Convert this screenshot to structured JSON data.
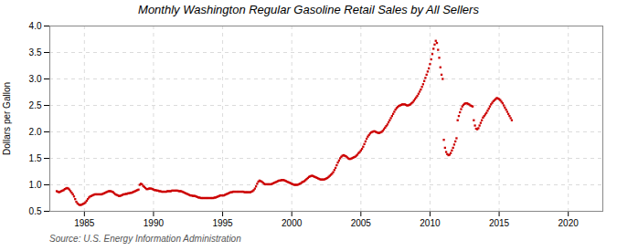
{
  "chart_data": {
    "type": "scatter",
    "title": "Monthly Washington Regular Gasoline Retail Sales by All Sellers",
    "ylabel": "Dollars per Gallon",
    "caption": "Source: U.S. Energy Information Administration",
    "color": "#CC0000",
    "marker": "square",
    "grid": true,
    "xlim": [
      1982.5,
      2022.5
    ],
    "ylim": [
      0.5,
      4.0
    ],
    "xticks": [
      1985,
      1990,
      1995,
      2000,
      2005,
      2010,
      2015,
      2020
    ],
    "yticks": [
      0.5,
      {
        "value": 1.0,
        "label": "1.0"
      },
      1.5,
      {
        "value": 2.0,
        "label": "2.0"
      },
      2.5,
      {
        "value": 3.0,
        "label": "3.0"
      },
      3.5,
      {
        "value": 4.0,
        "label": "4.0"
      }
    ],
    "x": [
      1983,
      1983.0833333333,
      1983.1666666667,
      1983.25,
      1983.3333333333,
      1983.4166666667,
      1983.5,
      1983.5833333333,
      1983.6666666667,
      1983.75,
      1983.8333333333,
      1983.9166666667,
      1984,
      1984.0833333333,
      1984.1666666667,
      1984.25,
      1984.3333333333,
      1984.4166666667,
      1984.5,
      1984.5833333333,
      1984.6666666667,
      1984.75,
      1984.8333333333,
      1984.9166666667,
      1985,
      1985.0833333333,
      1985.1666666667,
      1985.25,
      1985.3333333333,
      1985.4166666667,
      1985.5,
      1985.5833333333,
      1985.6666666667,
      1985.75,
      1985.8333333333,
      1985.9166666667,
      1986,
      1986.0833333333,
      1986.1666666667,
      1986.25,
      1986.3333333333,
      1986.4166666667,
      1986.5,
      1986.5833333333,
      1986.6666666667,
      1986.75,
      1986.8333333333,
      1986.9166666667,
      1987,
      1987.0833333333,
      1987.1666666667,
      1987.25,
      1987.3333333333,
      1987.4166666667,
      1987.5,
      1987.5833333333,
      1987.6666666667,
      1987.75,
      1987.8333333333,
      1987.9166666667,
      1988,
      1988.0833333333,
      1988.1666666667,
      1988.25,
      1988.3333333333,
      1988.4166666667,
      1988.5,
      1988.5833333333,
      1988.6666666667,
      1988.75,
      1988.8333333333,
      1988.9166666667,
      1989,
      1989.0833333333,
      1989.1666666667,
      1989.25,
      1989.3333333333,
      1989.4166666667,
      1989.5,
      1989.5833333333,
      1989.6666666667,
      1989.75,
      1989.8333333333,
      1989.9166666667,
      1990,
      1990.0833333333,
      1990.1666666667,
      1990.25,
      1990.3333333333,
      1990.4166666667,
      1990.5,
      1990.5833333333,
      1990.6666666667,
      1990.75,
      1990.8333333333,
      1990.9166666667,
      1991,
      1991.0833333333,
      1991.1666666667,
      1991.25,
      1991.3333333333,
      1991.4166666667,
      1991.5,
      1991.5833333333,
      1991.6666666667,
      1991.75,
      1991.8333333333,
      1991.9166666667,
      1992,
      1992.0833333333,
      1992.1666666667,
      1992.25,
      1992.3333333333,
      1992.4166666667,
      1992.5,
      1992.5833333333,
      1992.6666666667,
      1992.75,
      1992.8333333333,
      1992.9166666667,
      1993,
      1993.0833333333,
      1993.1666666667,
      1993.25,
      1993.3333333333,
      1993.4166666667,
      1993.5,
      1993.5833333333,
      1993.6666666667,
      1993.75,
      1993.8333333333,
      1993.9166666667,
      1994,
      1994.0833333333,
      1994.1666666667,
      1994.25,
      1994.3333333333,
      1994.4166666667,
      1994.5,
      1994.5833333333,
      1994.6666666667,
      1994.75,
      1994.8333333333,
      1994.9166666667,
      1995,
      1995.0833333333,
      1995.1666666667,
      1995.25,
      1995.3333333333,
      1995.4166666667,
      1995.5,
      1995.5833333333,
      1995.6666666667,
      1995.75,
      1995.8333333333,
      1995.9166666667,
      1996,
      1996.0833333333,
      1996.1666666667,
      1996.25,
      1996.3333333333,
      1996.4166666667,
      1996.5,
      1996.5833333333,
      1996.6666666667,
      1996.75,
      1996.8333333333,
      1996.9166666667,
      1997,
      1997.0833333333,
      1997.1666666667,
      1997.25,
      1997.3333333333,
      1997.4166666667,
      1997.5,
      1997.5833333333,
      1997.6666666667,
      1997.75,
      1997.8333333333,
      1997.9166666667,
      1998,
      1998.0833333333,
      1998.1666666667,
      1998.25,
      1998.3333333333,
      1998.4166666667,
      1998.5,
      1998.5833333333,
      1998.6666666667,
      1998.75,
      1998.8333333333,
      1998.9166666667,
      1999,
      1999.0833333333,
      1999.1666666667,
      1999.25,
      1999.3333333333,
      1999.4166666667,
      1999.5,
      1999.5833333333,
      1999.6666666667,
      1999.75,
      1999.8333333333,
      1999.9166666667,
      2000,
      2000.0833333333,
      2000.1666666667,
      2000.25,
      2000.3333333333,
      2000.4166666667,
      2000.5,
      2000.5833333333,
      2000.6666666667,
      2000.75,
      2000.8333333333,
      2000.9166666667,
      2001,
      2001.0833333333,
      2001.1666666667,
      2001.25,
      2001.3333333333,
      2001.4166666667,
      2001.5,
      2001.5833333333,
      2001.6666666667,
      2001.75,
      2001.8333333333,
      2001.9166666667,
      2002,
      2002.0833333333,
      2002.1666666667,
      2002.25,
      2002.3333333333,
      2002.4166666667,
      2002.5,
      2002.5833333333,
      2002.6666666667,
      2002.75,
      2002.8333333333,
      2002.9166666667,
      2003,
      2003.0833333333,
      2003.1666666667,
      2003.25,
      2003.3333333333,
      2003.4166666667,
      2003.5,
      2003.5833333333,
      2003.6666666667,
      2003.75,
      2003.8333333333,
      2003.9166666667,
      2004,
      2004.0833333333,
      2004.1666666667,
      2004.25,
      2004.3333333333,
      2004.4166666667,
      2004.5,
      2004.5833333333,
      2004.6666666667,
      2004.75,
      2004.8333333333,
      2004.9166666667,
      2005,
      2005.0833333333,
      2005.1666666667,
      2005.25,
      2005.3333333333,
      2005.4166666667,
      2005.5,
      2005.5833333333,
      2005.6666666667,
      2005.75,
      2005.8333333333,
      2005.9166666667,
      2006,
      2006.0833333333,
      2006.1666666667,
      2006.25,
      2006.3333333333,
      2006.4166666667,
      2006.5,
      2006.5833333333,
      2006.6666666667,
      2006.75,
      2006.8333333333,
      2006.9166666667,
      2007,
      2007.0833333333,
      2007.1666666667,
      2007.25,
      2007.3333333333,
      2007.4166666667,
      2007.5,
      2007.5833333333,
      2007.6666666667,
      2007.75,
      2007.8333333333,
      2007.9166666667,
      2008,
      2008.0833333333,
      2008.1666666667,
      2008.25,
      2008.3333333333,
      2008.4166666667,
      2008.5,
      2008.5833333333,
      2008.6666666667,
      2008.75,
      2008.8333333333,
      2008.9166666667,
      2009,
      2009.0833333333,
      2009.1666666667,
      2009.25,
      2009.3333333333,
      2009.4166666667,
      2009.5,
      2009.5833333333,
      2009.6666666667,
      2009.75,
      2009.8333333333,
      2009.9166666667,
      2010,
      2010.0833333333,
      2010.1666666667,
      2010.25,
      2010.3333333333,
      2010.4166666667,
      2010.5,
      2010.5833333333,
      2010.6666666667,
      2010.75,
      2010.8333333333,
      2010.9166666667,
      2011,
      2011.0833333333,
      2011.1666666667,
      2011.25,
      2011.3333333333,
      2011.4166666667,
      2011.5,
      2011.5833333333,
      2011.6666666667,
      2011.75,
      2011.8333333333,
      2011.9166666667,
      2012,
      2012.0833333333,
      2012.1666666667,
      2012.25,
      2012.3333333333,
      2012.4166666667,
      2012.5,
      2012.5833333333,
      2012.6666666667,
      2012.75,
      2012.8333333333,
      2012.9166666667,
      2013,
      2013.0833333333,
      2013.1666666667,
      2013.25,
      2013.3333333333,
      2013.4166666667,
      2013.5,
      2013.5833333333,
      2013.6666666667,
      2013.75,
      2013.8333333333,
      2013.9166666667,
      2014,
      2014.0833333333,
      2014.1666666667,
      2014.25,
      2014.3333333333,
      2014.4166666667,
      2014.5,
      2014.5833333333,
      2014.6666666667,
      2014.75,
      2014.8333333333,
      2014.9166666667,
      2015,
      2015.0833333333,
      2015.1666666667,
      2015.25,
      2015.3333333333,
      2015.4166666667,
      2015.5,
      2015.5833333333,
      2015.6666666667,
      2015.75,
      2015.8333333333,
      2015.9166666667
    ],
    "values": [
      0.88,
      0.87,
      0.86,
      0.87,
      0.88,
      0.89,
      0.9,
      0.92,
      0.93,
      0.94,
      0.93,
      0.91,
      0.88,
      0.85,
      0.82,
      0.78,
      0.73,
      0.68,
      0.65,
      0.63,
      0.62,
      0.62,
      0.63,
      0.64,
      0.65,
      0.67,
      0.7,
      0.73,
      0.76,
      0.78,
      0.79,
      0.8,
      0.81,
      0.82,
      0.82,
      0.82,
      0.82,
      0.82,
      0.82,
      0.82,
      0.83,
      0.84,
      0.85,
      0.86,
      0.87,
      0.88,
      0.88,
      0.88,
      0.87,
      0.86,
      0.84,
      0.82,
      0.81,
      0.8,
      0.79,
      0.79,
      0.8,
      0.81,
      0.82,
      0.82,
      0.83,
      0.83,
      0.84,
      0.84,
      0.85,
      0.85,
      0.86,
      0.87,
      0.88,
      0.89,
      0.9,
      0.91,
      1.0,
      1.02,
      1.01,
      0.98,
      0.96,
      0.94,
      0.92,
      0.92,
      0.93,
      0.93,
      0.93,
      0.92,
      0.91,
      0.9,
      0.9,
      0.89,
      0.89,
      0.88,
      0.88,
      0.87,
      0.87,
      0.87,
      0.87,
      0.87,
      0.88,
      0.88,
      0.88,
      0.88,
      0.89,
      0.89,
      0.89,
      0.89,
      0.89,
      0.89,
      0.88,
      0.88,
      0.88,
      0.87,
      0.86,
      0.85,
      0.84,
      0.83,
      0.82,
      0.81,
      0.8,
      0.8,
      0.79,
      0.79,
      0.79,
      0.78,
      0.77,
      0.76,
      0.76,
      0.75,
      0.75,
      0.75,
      0.75,
      0.75,
      0.75,
      0.75,
      0.75,
      0.75,
      0.75,
      0.75,
      0.75,
      0.76,
      0.76,
      0.77,
      0.78,
      0.79,
      0.8,
      0.8,
      0.8,
      0.8,
      0.81,
      0.82,
      0.83,
      0.84,
      0.85,
      0.86,
      0.86,
      0.87,
      0.87,
      0.87,
      0.87,
      0.87,
      0.87,
      0.87,
      0.87,
      0.87,
      0.87,
      0.86,
      0.86,
      0.86,
      0.86,
      0.86,
      0.86,
      0.87,
      0.88,
      0.9,
      0.93,
      0.97,
      1.02,
      1.06,
      1.08,
      1.07,
      1.06,
      1.04,
      1.02,
      1.01,
      1.01,
      1.01,
      1.01,
      1.01,
      1.01,
      1.02,
      1.03,
      1.04,
      1.05,
      1.06,
      1.07,
      1.08,
      1.08,
      1.09,
      1.09,
      1.09,
      1.08,
      1.07,
      1.06,
      1.05,
      1.04,
      1.03,
      1.02,
      1.01,
      1.0,
      1.0,
      1.0,
      1.0,
      1.01,
      1.02,
      1.03,
      1.05,
      1.06,
      1.07,
      1.09,
      1.11,
      1.13,
      1.15,
      1.16,
      1.17,
      1.17,
      1.16,
      1.15,
      1.14,
      1.13,
      1.12,
      1.11,
      1.1,
      1.1,
      1.1,
      1.1,
      1.11,
      1.12,
      1.13,
      1.15,
      1.17,
      1.19,
      1.21,
      1.24,
      1.28,
      1.32,
      1.37,
      1.42,
      1.46,
      1.5,
      1.53,
      1.55,
      1.56,
      1.55,
      1.54,
      1.52,
      1.5,
      1.49,
      1.49,
      1.5,
      1.51,
      1.52,
      1.53,
      1.55,
      1.57,
      1.6,
      1.62,
      1.65,
      1.68,
      1.72,
      1.77,
      1.82,
      1.87,
      1.91,
      1.94,
      1.97,
      1.99,
      2.0,
      2.01,
      2.01,
      2.0,
      1.99,
      1.98,
      1.98,
      1.99,
      2.0,
      2.02,
      2.05,
      2.08,
      2.11,
      2.14,
      2.18,
      2.22,
      2.26,
      2.3,
      2.34,
      2.38,
      2.42,
      2.45,
      2.47,
      2.49,
      2.5,
      2.51,
      2.52,
      2.52,
      2.52,
      2.51,
      2.5,
      2.5,
      2.51,
      2.52,
      2.54,
      2.56,
      2.59,
      2.62,
      2.65,
      2.68,
      2.72,
      2.76,
      2.8,
      2.85,
      2.9,
      2.96,
      3.02,
      3.08,
      3.14,
      3.2,
      3.28,
      3.37,
      3.47,
      3.57,
      3.65,
      3.72,
      3.68,
      3.55,
      3.4,
      3.22,
      3.08,
      3.0,
      1.85,
      1.7,
      1.62,
      1.58,
      1.56,
      1.57,
      1.6,
      1.65,
      1.7,
      1.76,
      1.82,
      1.88,
      2.22,
      2.3,
      2.37,
      2.43,
      2.48,
      2.51,
      2.53,
      2.54,
      2.54,
      2.53,
      2.52,
      2.5,
      2.49,
      2.48,
      2.22,
      2.12,
      2.06,
      2.05,
      2.07,
      2.12,
      2.17,
      2.22,
      2.27,
      2.3,
      2.33,
      2.36,
      2.4,
      2.44,
      2.48,
      2.52,
      2.55,
      2.58,
      2.6,
      2.62,
      2.64,
      2.63,
      2.62,
      2.6,
      2.57,
      2.54,
      2.5,
      2.46,
      2.42,
      2.38,
      2.34,
      2.3,
      2.26,
      2.22
    ]
  }
}
